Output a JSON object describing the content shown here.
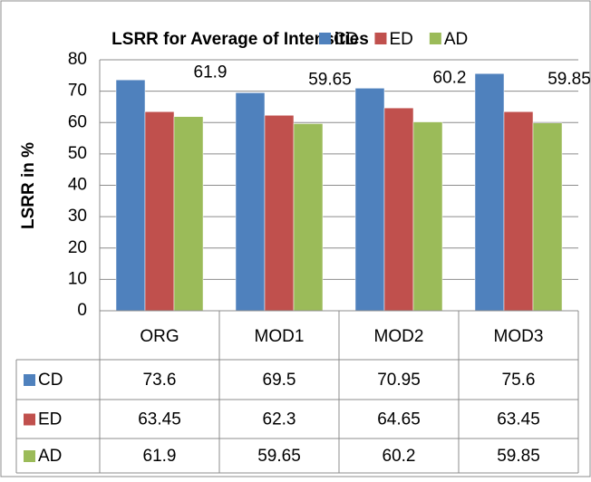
{
  "chart_data": {
    "type": "bar",
    "title": "LSRR for Average of Intensities",
    "y_label": "LSRR in %",
    "categories": [
      "ORG",
      "MOD1",
      "MOD2",
      "MOD3"
    ],
    "series": [
      {
        "name": "CD",
        "color": "#4f81bd",
        "values": [
          73.6,
          69.5,
          70.95,
          75.6
        ]
      },
      {
        "name": "ED",
        "color": "#c0504d",
        "values": [
          63.45,
          62.3,
          64.65,
          63.45
        ]
      },
      {
        "name": "AD",
        "color": "#9bbb59",
        "values": [
          61.9,
          59.65,
          60.2,
          59.85
        ]
      }
    ],
    "data_label_series": 2,
    "ylim": [
      0,
      80
    ],
    "yticks": [
      0,
      10,
      20,
      30,
      40,
      50,
      60,
      70,
      80
    ],
    "grid": true,
    "data_table": true
  }
}
